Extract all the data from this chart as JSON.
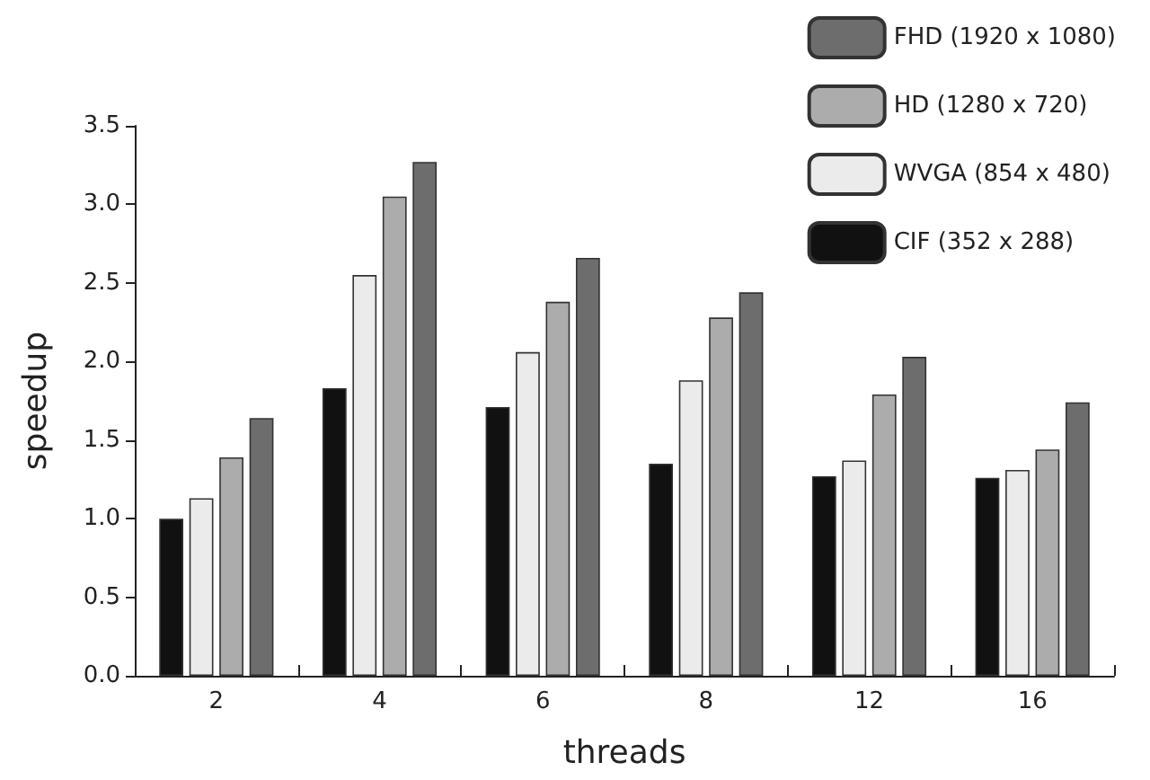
{
  "chart_data": {
    "type": "bar",
    "xlabel": "threads",
    "ylabel": "speedup",
    "categories": [
      "2",
      "4",
      "6",
      "8",
      "12",
      "16"
    ],
    "series": [
      {
        "name": "CIF (352 x 288)",
        "color": "#111111",
        "values": [
          1.0,
          1.83,
          1.71,
          1.35,
          1.27,
          1.26
        ]
      },
      {
        "name": "WVGA (854 x 480)",
        "color": "#ebebeb",
        "values": [
          1.13,
          2.55,
          2.06,
          1.88,
          1.37,
          1.31
        ]
      },
      {
        "name": "HD (1280 x 720)",
        "color": "#acacac",
        "values": [
          1.39,
          3.05,
          2.38,
          2.28,
          1.79,
          1.44
        ]
      },
      {
        "name": "FHD (1920 x 1080)",
        "color": "#6d6d6d",
        "values": [
          1.64,
          3.27,
          2.66,
          2.44,
          2.03,
          1.74
        ]
      }
    ],
    "ylim": [
      0,
      3.5
    ],
    "yticks": [
      {
        "value": 0,
        "label": "0.0"
      },
      {
        "value": 0.5,
        "label": "0.5"
      },
      {
        "value": 1,
        "label": "1.0"
      },
      {
        "value": 1.5,
        "label": "1.5"
      },
      {
        "value": 2,
        "label": "2.0"
      },
      {
        "value": 2.5,
        "label": "2.5"
      },
      {
        "value": 3,
        "label": "3.0"
      },
      {
        "value": 3.5,
        "label": "3.5"
      }
    ],
    "grid": false,
    "legend": "top right"
  }
}
